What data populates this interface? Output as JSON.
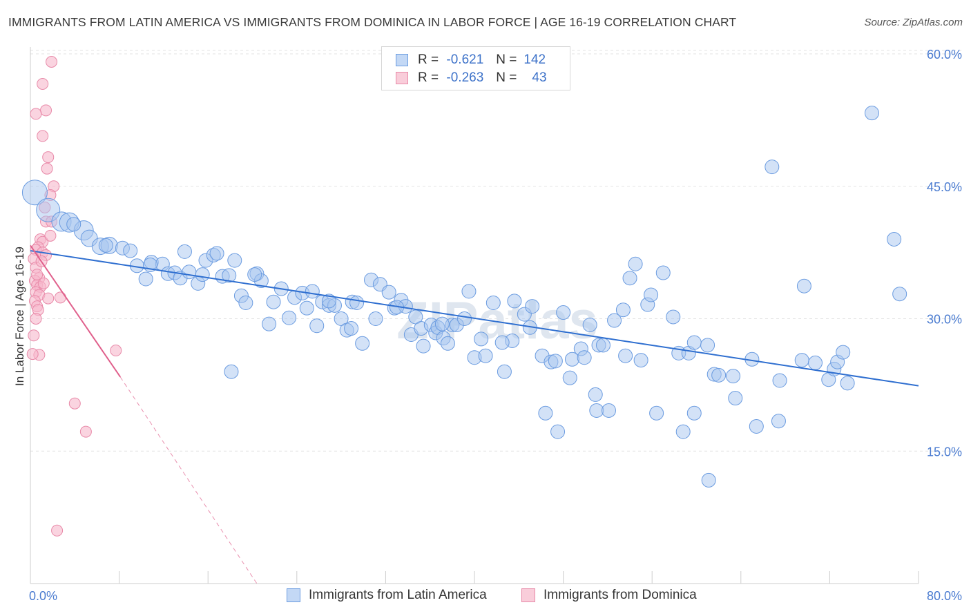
{
  "title": "IMMIGRANTS FROM LATIN AMERICA VS IMMIGRANTS FROM DOMINICA IN LABOR FORCE | AGE 16-19 CORRELATION CHART",
  "source": "Source: ZipAtlas.com",
  "watermark": "ZIPatlas",
  "legend_top": {
    "rows": [
      {
        "r_label": "R =",
        "r_value": "-0.621",
        "n_label": "N =",
        "n_value": "142"
      },
      {
        "r_label": "R =",
        "r_value": "-0.263",
        "n_label": "N =",
        "n_value": "43"
      }
    ]
  },
  "legend_bottom": {
    "items": [
      "Immigrants from Latin America",
      "Immigrants from Dominica"
    ]
  },
  "colors": {
    "blue_fill": "#a8c6f0",
    "blue_stroke": "#6a9be0",
    "blue_line": "#2f6fd0",
    "pink_fill": "#f7b8cc",
    "pink_stroke": "#e889a8",
    "pink_line": "#e0608c",
    "grid": "#e3e3e3",
    "tick_text": "#4a7bd0"
  },
  "chart_data": {
    "type": "scatter",
    "title": "IMMIGRANTS FROM LATIN AMERICA VS IMMIGRANTS FROM DOMINICA IN LABOR FORCE | AGE 16-19 CORRELATION CHART",
    "xlabel": "",
    "ylabel": "In Labor Force | Age 16-19",
    "xlim": [
      0,
      80
    ],
    "ylim": [
      0,
      60
    ],
    "x_tick_labels": [
      "0.0%",
      "80.0%"
    ],
    "y_ticks": [
      15,
      30,
      45,
      60
    ],
    "y_tick_labels": [
      "15.0%",
      "30.0%",
      "45.0%",
      "60.0%"
    ],
    "grid": true,
    "legend_position": "top-center",
    "series": [
      {
        "name": "Immigrants from Latin America",
        "r": -0.621,
        "n": 142,
        "trend": {
          "x": [
            0,
            80
          ],
          "y": [
            37.7,
            22.4
          ]
        },
        "points": [
          [
            0.4,
            44.3
          ],
          [
            1.6,
            42.3
          ],
          [
            2.8,
            41.0
          ],
          [
            3.5,
            40.9
          ],
          [
            4.8,
            40.0
          ],
          [
            5.3,
            39.1
          ],
          [
            6.3,
            38.2
          ],
          [
            7.1,
            38.3
          ],
          [
            8.3,
            38.0
          ],
          [
            9.0,
            37.7
          ],
          [
            9.6,
            36.0
          ],
          [
            10.4,
            34.5
          ],
          [
            10.9,
            36.4
          ],
          [
            11.9,
            36.2
          ],
          [
            12.4,
            35.1
          ],
          [
            13.0,
            35.2
          ],
          [
            13.5,
            34.6
          ],
          [
            13.9,
            37.6
          ],
          [
            14.3,
            35.3
          ],
          [
            15.1,
            34.0
          ],
          [
            15.5,
            35.0
          ],
          [
            15.8,
            36.6
          ],
          [
            16.5,
            37.2
          ],
          [
            16.8,
            37.4
          ],
          [
            17.3,
            34.8
          ],
          [
            17.9,
            34.9
          ],
          [
            18.4,
            36.6
          ],
          [
            18.1,
            24.0
          ],
          [
            19.0,
            32.6
          ],
          [
            19.4,
            31.8
          ],
          [
            20.4,
            35.1
          ],
          [
            20.8,
            34.3
          ],
          [
            21.5,
            29.4
          ],
          [
            21.9,
            31.9
          ],
          [
            22.6,
            33.4
          ],
          [
            23.3,
            30.1
          ],
          [
            23.8,
            32.4
          ],
          [
            24.5,
            32.9
          ],
          [
            24.9,
            31.2
          ],
          [
            25.4,
            33.1
          ],
          [
            25.8,
            29.2
          ],
          [
            26.3,
            31.9
          ],
          [
            26.9,
            31.5
          ],
          [
            27.4,
            31.5
          ],
          [
            28.0,
            30.0
          ],
          [
            28.5,
            28.7
          ],
          [
            29.0,
            31.9
          ],
          [
            29.4,
            31.8
          ],
          [
            29.9,
            27.2
          ],
          [
            30.7,
            34.4
          ],
          [
            31.1,
            30.0
          ],
          [
            31.5,
            33.9
          ],
          [
            32.3,
            33.0
          ],
          [
            32.8,
            31.2
          ],
          [
            33.4,
            32.1
          ],
          [
            33.8,
            31.4
          ],
          [
            34.3,
            28.2
          ],
          [
            34.7,
            30.2
          ],
          [
            35.2,
            28.9
          ],
          [
            35.4,
            26.9
          ],
          [
            36.1,
            29.3
          ],
          [
            36.5,
            28.4
          ],
          [
            36.7,
            29.0
          ],
          [
            37.2,
            27.8
          ],
          [
            37.6,
            27.2
          ],
          [
            38.0,
            29.3
          ],
          [
            38.4,
            29.3
          ],
          [
            39.1,
            30.0
          ],
          [
            39.5,
            33.1
          ],
          [
            40.0,
            25.6
          ],
          [
            40.6,
            27.7
          ],
          [
            41.0,
            25.8
          ],
          [
            41.7,
            31.8
          ],
          [
            42.7,
            24.0
          ],
          [
            43.4,
            27.5
          ],
          [
            43.6,
            32.0
          ],
          [
            44.5,
            30.5
          ],
          [
            45.0,
            29.0
          ],
          [
            45.2,
            31.4
          ],
          [
            46.1,
            25.8
          ],
          [
            46.4,
            19.3
          ],
          [
            46.9,
            25.1
          ],
          [
            47.5,
            17.2
          ],
          [
            48.0,
            30.7
          ],
          [
            48.6,
            23.3
          ],
          [
            48.8,
            25.4
          ],
          [
            49.6,
            26.6
          ],
          [
            49.9,
            25.6
          ],
          [
            50.4,
            29.3
          ],
          [
            50.9,
            21.4
          ],
          [
            51.0,
            19.6
          ],
          [
            51.2,
            27.0
          ],
          [
            51.6,
            27.0
          ],
          [
            52.1,
            19.6
          ],
          [
            52.6,
            29.8
          ],
          [
            53.6,
            25.8
          ],
          [
            54.0,
            34.6
          ],
          [
            54.5,
            36.2
          ],
          [
            55.0,
            25.3
          ],
          [
            55.6,
            31.6
          ],
          [
            55.9,
            32.7
          ],
          [
            56.4,
            19.3
          ],
          [
            57.0,
            35.2
          ],
          [
            57.9,
            30.2
          ],
          [
            58.4,
            26.1
          ],
          [
            58.8,
            17.2
          ],
          [
            59.3,
            26.1
          ],
          [
            59.8,
            19.3
          ],
          [
            59.8,
            27.3
          ],
          [
            61.1,
            11.7
          ],
          [
            61.6,
            23.7
          ],
          [
            62.0,
            23.6
          ],
          [
            63.3,
            23.5
          ],
          [
            63.5,
            21.0
          ],
          [
            65.0,
            25.4
          ],
          [
            65.4,
            17.8
          ],
          [
            66.8,
            47.2
          ],
          [
            67.4,
            18.4
          ],
          [
            67.5,
            23.0
          ],
          [
            69.5,
            25.3
          ],
          [
            69.7,
            33.7
          ],
          [
            70.7,
            25.0
          ],
          [
            71.9,
            23.1
          ],
          [
            72.4,
            24.3
          ],
          [
            72.7,
            25.1
          ],
          [
            73.2,
            26.2
          ],
          [
            73.6,
            22.7
          ],
          [
            75.8,
            53.3
          ],
          [
            77.8,
            39.0
          ],
          [
            78.3,
            32.8
          ],
          [
            3.9,
            40.7
          ],
          [
            6.8,
            38.3
          ],
          [
            10.8,
            36.1
          ],
          [
            20.2,
            35.0
          ],
          [
            26.9,
            32.0
          ],
          [
            28.9,
            28.9
          ],
          [
            33.0,
            31.3
          ],
          [
            37.1,
            29.4
          ],
          [
            42.5,
            27.3
          ],
          [
            47.3,
            25.2
          ],
          [
            53.4,
            31.0
          ],
          [
            61.0,
            27.0
          ]
        ]
      },
      {
        "name": "Immigrants from Dominica",
        "r": -0.263,
        "n": 43,
        "trend": {
          "x": [
            0,
            8.1
          ],
          "y": [
            38.3,
            23.4
          ],
          "dashed_to": {
            "x": 20.4,
            "y": 0
          }
        },
        "points": [
          [
            1.9,
            59.1
          ],
          [
            1.1,
            56.6
          ],
          [
            1.4,
            53.6
          ],
          [
            0.5,
            53.2
          ],
          [
            1.1,
            50.7
          ],
          [
            1.6,
            48.3
          ],
          [
            1.5,
            47.0
          ],
          [
            2.1,
            45.0
          ],
          [
            1.8,
            44.0
          ],
          [
            1.3,
            42.6
          ],
          [
            1.4,
            41.0
          ],
          [
            1.9,
            41.0
          ],
          [
            0.9,
            39.0
          ],
          [
            1.1,
            38.7
          ],
          [
            1.8,
            39.4
          ],
          [
            0.7,
            38.1
          ],
          [
            0.5,
            37.8
          ],
          [
            1.1,
            37.5
          ],
          [
            1.4,
            37.2
          ],
          [
            0.3,
            36.8
          ],
          [
            0.5,
            35.8
          ],
          [
            0.8,
            34.6
          ],
          [
            0.4,
            34.3
          ],
          [
            0.6,
            33.8
          ],
          [
            0.9,
            33.6
          ],
          [
            0.5,
            33.0
          ],
          [
            0.8,
            32.7
          ],
          [
            1.6,
            32.3
          ],
          [
            2.7,
            32.4
          ],
          [
            0.4,
            32.0
          ],
          [
            0.6,
            31.4
          ],
          [
            0.7,
            31.0
          ],
          [
            0.5,
            30.0
          ],
          [
            0.3,
            28.1
          ],
          [
            0.8,
            25.9
          ],
          [
            0.2,
            26.0
          ],
          [
            7.7,
            26.4
          ],
          [
            4.0,
            20.4
          ],
          [
            5.0,
            17.2
          ],
          [
            2.4,
            6.0
          ],
          [
            0.6,
            35.0
          ],
          [
            1.0,
            36.5
          ],
          [
            1.2,
            34.0
          ]
        ]
      }
    ]
  }
}
